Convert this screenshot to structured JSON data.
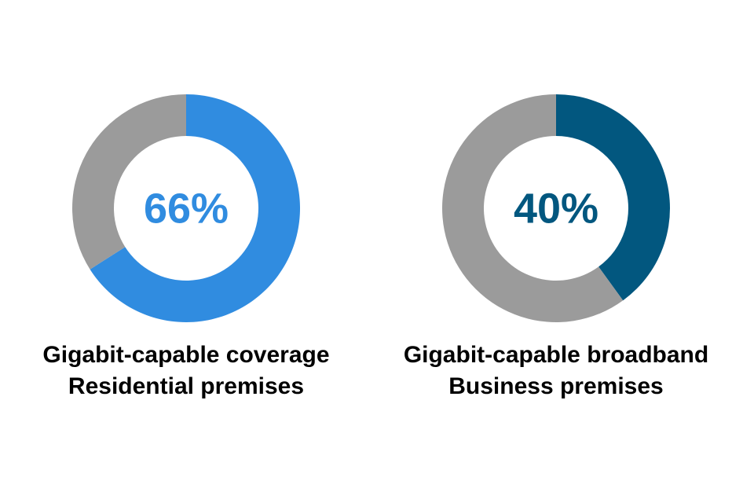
{
  "chart_data": [
    {
      "type": "donut",
      "title": "Gigabit-capable coverage",
      "subtitle": "Residential premises",
      "values": [
        66,
        34
      ],
      "value_labels": [
        "66%",
        null
      ],
      "colors": [
        "#308ce0",
        "#9b9b9b"
      ]
    },
    {
      "type": "donut",
      "title": "Gigabit-capable broadband",
      "subtitle": "Business premises",
      "values": [
        40,
        60
      ],
      "value_labels": [
        "40%",
        null
      ],
      "colors": [
        "#02577f",
        "#9b9b9b"
      ]
    }
  ]
}
